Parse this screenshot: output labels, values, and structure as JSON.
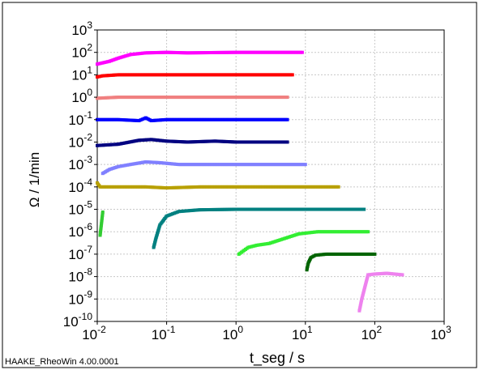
{
  "chart_data": {
    "type": "scatter",
    "title": "",
    "xlabel": "t_seg / s",
    "ylabel": "Ω / 1/min",
    "xscale": "log",
    "yscale": "log",
    "xlim": [
      0.01,
      1000
    ],
    "ylim": [
      1e-10,
      1000
    ],
    "grid": true,
    "legend": "none",
    "x_ticks": [
      {
        "base": "10",
        "exp": "-2"
      },
      {
        "base": "10",
        "exp": "-1"
      },
      {
        "base": "10",
        "exp": "0"
      },
      {
        "base": "10",
        "exp": "1"
      },
      {
        "base": "10",
        "exp": "2"
      },
      {
        "base": "10",
        "exp": "3"
      }
    ],
    "y_ticks": [
      {
        "base": "10",
        "exp": "3"
      },
      {
        "base": "10",
        "exp": "2"
      },
      {
        "base": "10",
        "exp": "1"
      },
      {
        "base": "10",
        "exp": "0"
      },
      {
        "base": "10",
        "exp": "-1"
      },
      {
        "base": "10",
        "exp": "-2"
      },
      {
        "base": "10",
        "exp": "-3"
      },
      {
        "base": "10",
        "exp": "-4"
      },
      {
        "base": "10",
        "exp": "-5"
      },
      {
        "base": "10",
        "exp": "-6"
      },
      {
        "base": "10",
        "exp": "-7"
      },
      {
        "base": "10",
        "exp": "-8"
      },
      {
        "base": "10",
        "exp": "-9"
      },
      {
        "base": "10",
        "exp": "-10"
      }
    ],
    "series": [
      {
        "color": "#ff00ff",
        "x": [
          0.01,
          0.015,
          0.02,
          0.03,
          0.05,
          0.1,
          0.2,
          0.5,
          1,
          3,
          9
        ],
        "y": [
          30,
          40,
          55,
          80,
          95,
          100,
          95,
          98,
          100,
          100,
          100
        ]
      },
      {
        "color": "#ff0000",
        "x": [
          0.01,
          0.012,
          0.02,
          0.05,
          0.1,
          1,
          6.5
        ],
        "y": [
          8,
          9,
          10,
          10,
          10,
          10,
          10
        ]
      },
      {
        "color": "#f08080",
        "x": [
          0.01,
          0.02,
          0.05,
          0.1,
          1,
          5.5
        ],
        "y": [
          0.9,
          1,
          1,
          1,
          1,
          1
        ]
      },
      {
        "color": "#0000ff",
        "x": [
          0.01,
          0.02,
          0.04,
          0.05,
          0.06,
          0.1,
          0.3,
          1,
          5.5
        ],
        "y": [
          0.1,
          0.1,
          0.09,
          0.12,
          0.09,
          0.1,
          0.1,
          0.1,
          0.1
        ]
      },
      {
        "color": "#000080",
        "x": [
          0.01,
          0.02,
          0.04,
          0.06,
          0.1,
          0.2,
          0.5,
          1,
          5.5
        ],
        "y": [
          0.007,
          0.008,
          0.012,
          0.013,
          0.011,
          0.01,
          0.011,
          0.01,
          0.01
        ]
      },
      {
        "color": "#8080ff",
        "x": [
          0.012,
          0.015,
          0.02,
          0.03,
          0.05,
          0.08,
          0.15,
          0.3,
          1,
          10
        ],
        "y": [
          0.0004,
          0.0006,
          0.0008,
          0.001,
          0.0013,
          0.0012,
          0.001,
          0.001,
          0.001,
          0.001
        ]
      },
      {
        "color": "#b8a000",
        "x": [
          0.01,
          0.011,
          0.02,
          0.05,
          0.1,
          0.3,
          1,
          30
        ],
        "y": [
          0.00015,
          0.0001,
          0.0001,
          0.0001,
          9e-05,
          0.0001,
          0.0001,
          0.0001
        ]
      },
      {
        "color": "#008080",
        "x": [
          0.065,
          0.07,
          0.08,
          0.1,
          0.15,
          0.3,
          1,
          5,
          70
        ],
        "y": [
          2e-07,
          5e-07,
          2e-06,
          5e-06,
          8e-06,
          9.5e-06,
          1e-05,
          1e-05,
          1e-05
        ]
      },
      {
        "color": "#32cd32",
        "x": [
          0.011,
          0.012
        ],
        "y": [
          7e-07,
          7.5e-06
        ]
      },
      {
        "color": "#33ee33",
        "x": [
          1.1,
          1.5,
          2,
          3,
          5,
          8,
          15,
          80
        ],
        "y": [
          1e-07,
          2e-07,
          2.5e-07,
          3e-07,
          5e-07,
          8e-07,
          1e-06,
          1e-06
        ]
      },
      {
        "color": "#006400",
        "x": [
          10.5,
          11,
          12,
          14,
          20,
          40,
          100
        ],
        "y": [
          2e-08,
          4e-08,
          7e-08,
          9e-08,
          1e-07,
          1e-07,
          1e-07
        ]
      },
      {
        "color": "#ee82ee",
        "x": [
          60,
          65,
          80,
          100,
          150,
          250
        ],
        "y": [
          3e-10,
          1e-09,
          1.2e-08,
          1.3e-08,
          1.4e-08,
          1.2e-08
        ]
      }
    ]
  },
  "footer_text": "HAAKE_RheoWin 4.00.0001"
}
